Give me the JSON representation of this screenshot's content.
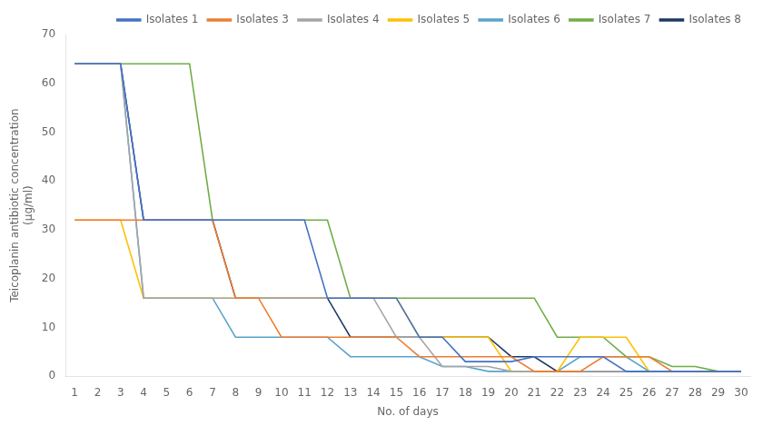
{
  "chart_data": {
    "type": "line",
    "x_label": "No. of days",
    "y_label": "Teicoplanin antibiotic concentration\n(μg/ml)",
    "x": [
      1,
      2,
      3,
      4,
      5,
      6,
      7,
      8,
      9,
      10,
      11,
      12,
      13,
      14,
      15,
      16,
      17,
      18,
      19,
      20,
      21,
      22,
      23,
      24,
      25,
      26,
      27,
      28,
      29,
      30
    ],
    "xlim": [
      0.6,
      30.4
    ],
    "xticks": [
      1,
      2,
      3,
      4,
      5,
      6,
      7,
      8,
      9,
      10,
      11,
      12,
      13,
      14,
      15,
      16,
      17,
      18,
      19,
      20,
      21,
      22,
      23,
      24,
      25,
      26,
      27,
      28,
      29,
      30
    ],
    "ylim": [
      0,
      70
    ],
    "yticks": [
      0,
      10,
      20,
      30,
      40,
      50,
      60,
      70
    ],
    "grid": false,
    "legend": "upper right",
    "series": [
      {
        "name": "Isolates 1",
        "color": "#4472c4",
        "values": [
          64,
          64,
          64,
          32,
          32,
          32,
          32,
          32,
          32,
          32,
          32,
          16,
          16,
          16,
          16,
          8,
          8,
          3,
          3,
          3,
          4,
          4,
          4,
          4,
          1,
          1,
          1,
          1,
          1,
          1
        ]
      },
      {
        "name": "Isolates 3",
        "color": "#ed7d31",
        "values": [
          32,
          32,
          32,
          32,
          32,
          32,
          32,
          16,
          16,
          8,
          8,
          8,
          8,
          8,
          8,
          4,
          4,
          4,
          4,
          4,
          1,
          1,
          1,
          4,
          4,
          4,
          1,
          1,
          1,
          1
        ]
      },
      {
        "name": "Isolates 4",
        "color": "#a5a5a5",
        "values": [
          64,
          64,
          64,
          16,
          16,
          16,
          16,
          16,
          16,
          16,
          16,
          16,
          16,
          16,
          8,
          8,
          2,
          2,
          2,
          1,
          1,
          1,
          1,
          1,
          1,
          1,
          1,
          1,
          1,
          1
        ]
      },
      {
        "name": "Isolates 5",
        "color": "#ffc000",
        "values": [
          32,
          32,
          32,
          16,
          16,
          16,
          16,
          16,
          16,
          16,
          16,
          16,
          16,
          16,
          16,
          8,
          8,
          8,
          8,
          1,
          1,
          1,
          8,
          8,
          8,
          1,
          1,
          1,
          1,
          1
        ]
      },
      {
        "name": "Isolates 6",
        "color": "#5ba3c9",
        "values": [
          64,
          64,
          64,
          16,
          16,
          16,
          16,
          8,
          8,
          8,
          8,
          8,
          4,
          4,
          4,
          4,
          2,
          2,
          1,
          1,
          1,
          1,
          4,
          4,
          4,
          1,
          1,
          1,
          1,
          1
        ]
      },
      {
        "name": "Isolates 7",
        "color": "#70ad47",
        "values": [
          64,
          64,
          64,
          64,
          64,
          64,
          32,
          32,
          32,
          32,
          32,
          32,
          16,
          16,
          16,
          16,
          16,
          16,
          16,
          16,
          16,
          8,
          8,
          8,
          4,
          4,
          2,
          2,
          1,
          1
        ]
      },
      {
        "name": "Isolates 8",
        "color": "#1f3864",
        "values": [
          64,
          64,
          64,
          32,
          32,
          32,
          32,
          16,
          16,
          16,
          16,
          16,
          8,
          8,
          8,
          8,
          8,
          8,
          8,
          4,
          4,
          1,
          1,
          1,
          1,
          1,
          1,
          1,
          1,
          1
        ]
      }
    ]
  }
}
